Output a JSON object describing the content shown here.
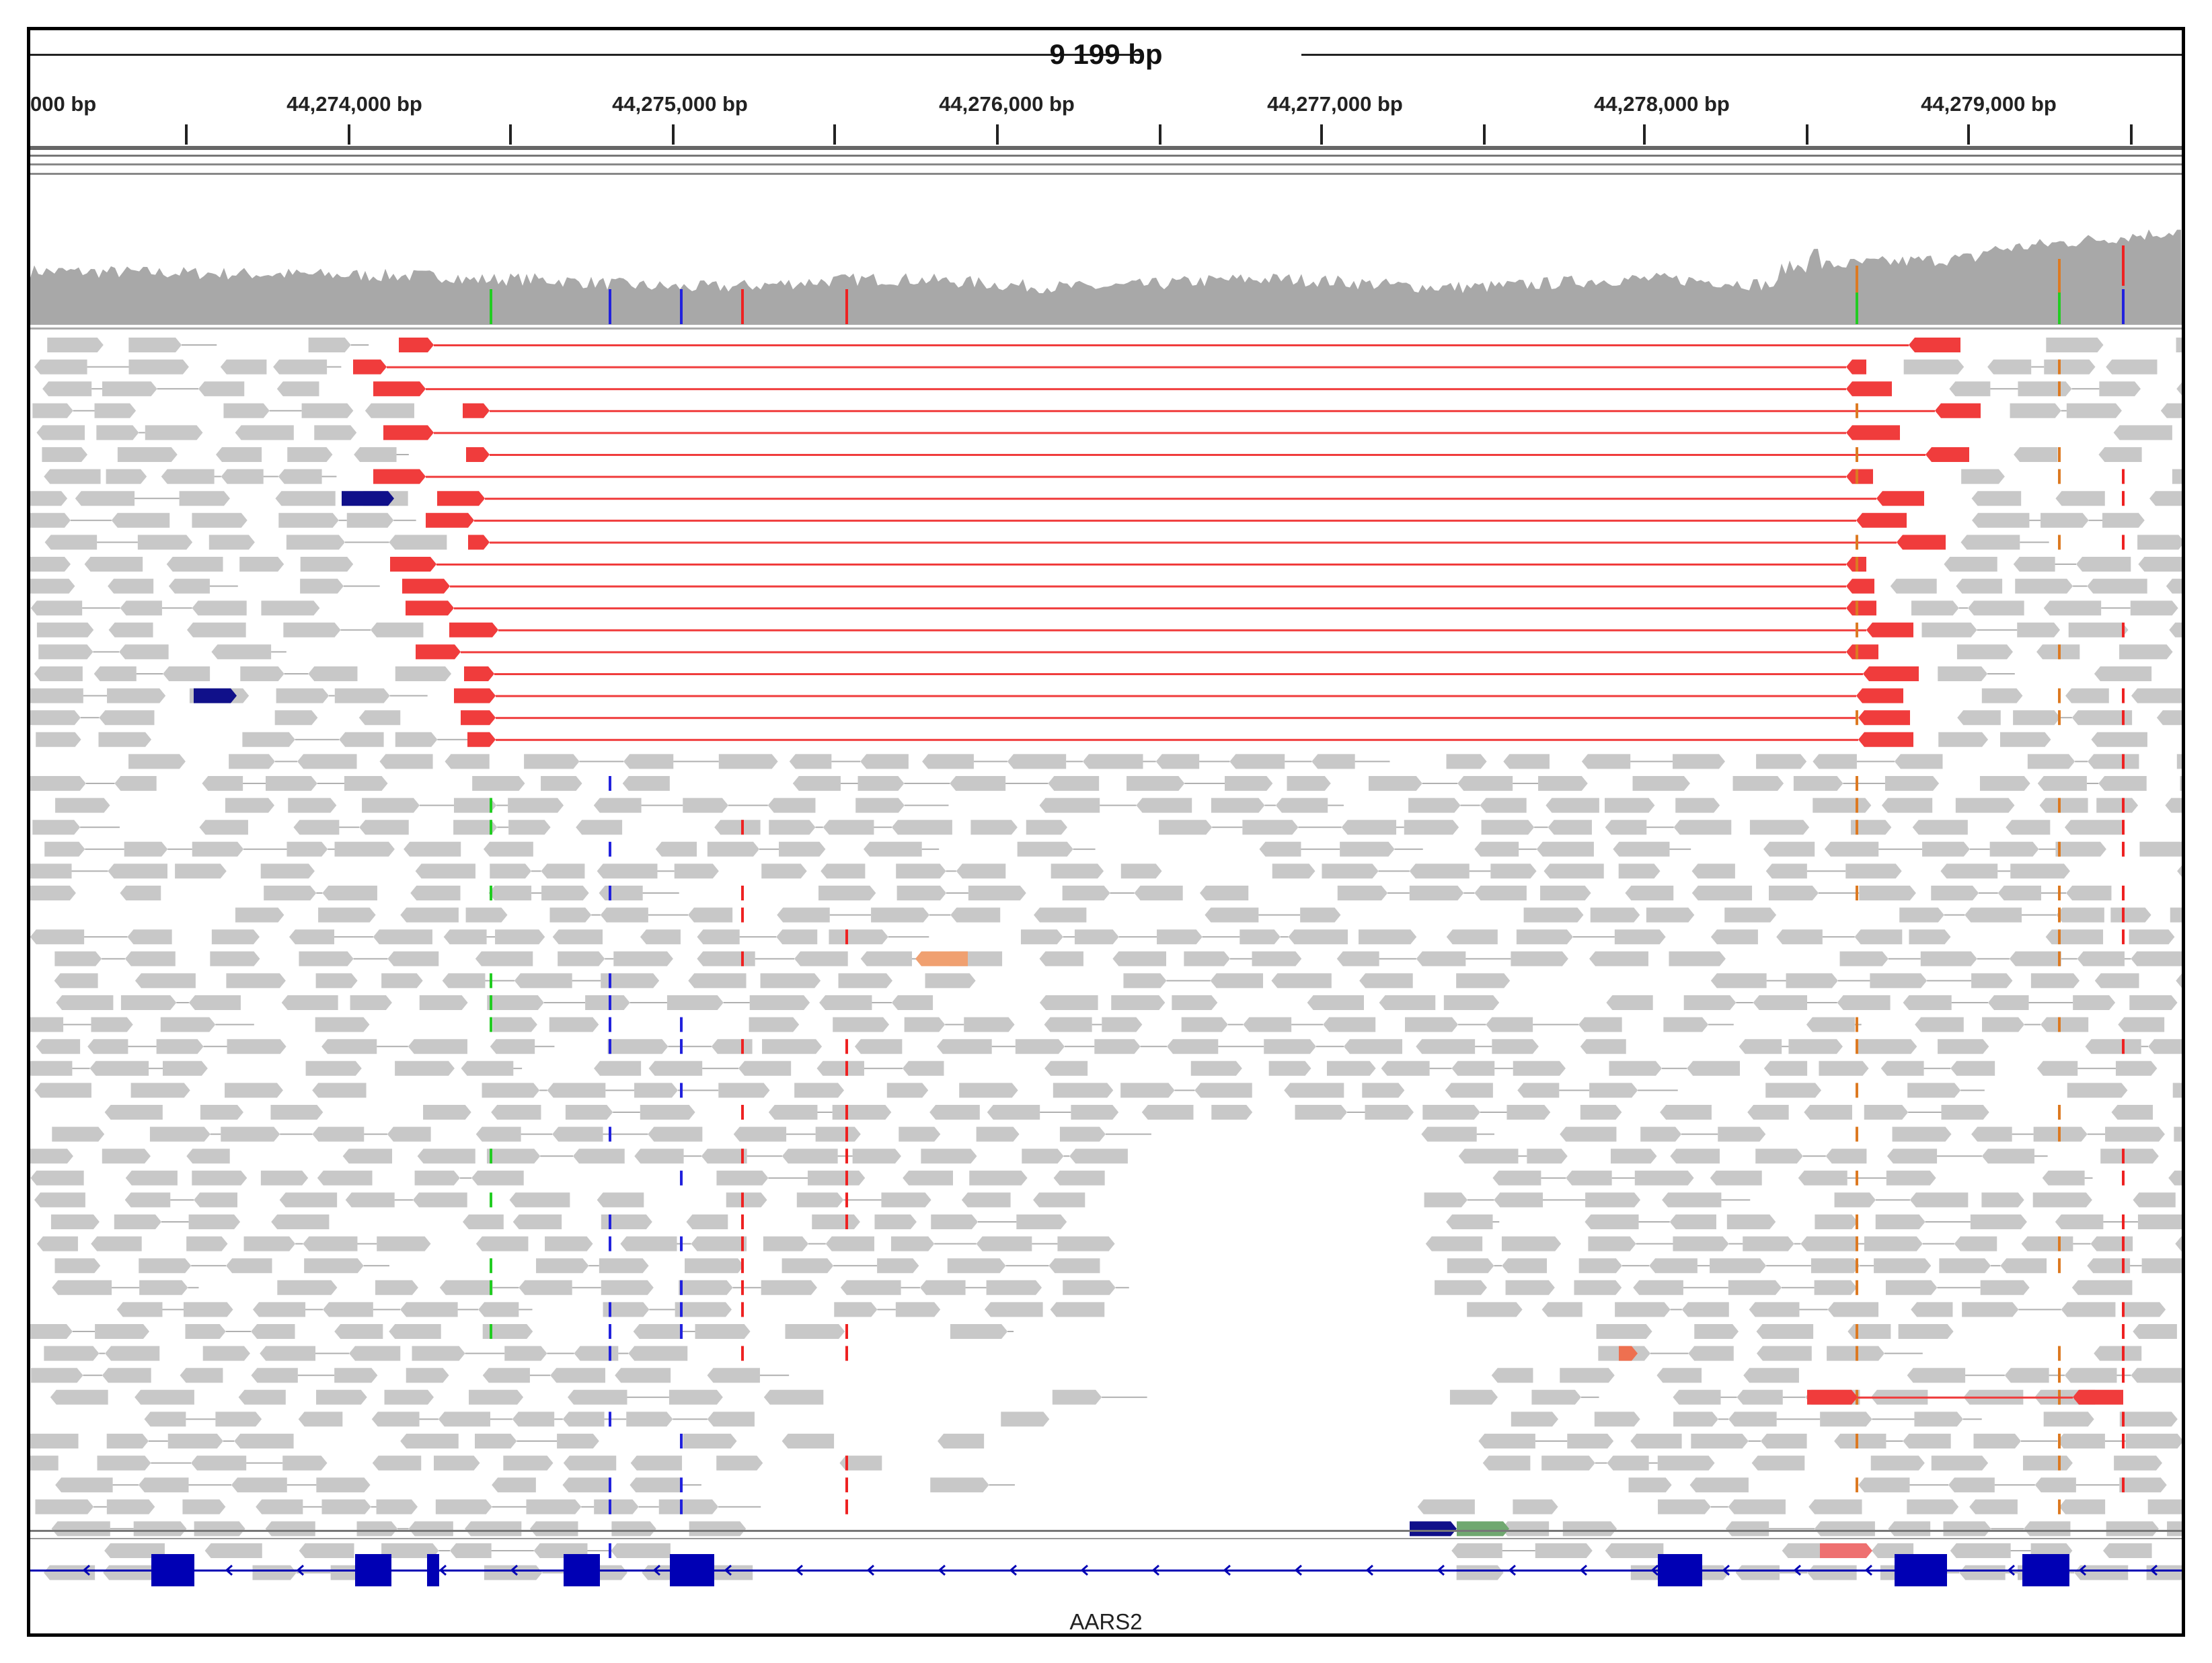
{
  "ruler": {
    "span_label": "9 199 bp",
    "tick_labels": [
      "000 bp",
      "44,274,000 bp",
      "44,275,000 bp",
      "44,276,000 bp",
      "44,277,000 bp",
      "44,278,000 bp",
      "44,279,000 bp"
    ]
  },
  "gene_track": {
    "gene_name": "AARS2"
  },
  "colors": {
    "split_read": "#f03c3c",
    "normal_read": "#c8c8c8",
    "coverage": "#a8a8a8",
    "gene": "#0000b4",
    "mismatch_green": "#22cc22",
    "mismatch_blue": "#2222dd",
    "mismatch_red": "#ee2222",
    "mismatch_orange": "#dd7a22",
    "inversion_blue": "#10108a",
    "insert_orange": "#f0a070",
    "pair_green": "#70a870"
  },
  "icons": {
    "read_arrow": "chevron-arrow",
    "strand_arrow": "left-arrowhead"
  }
}
